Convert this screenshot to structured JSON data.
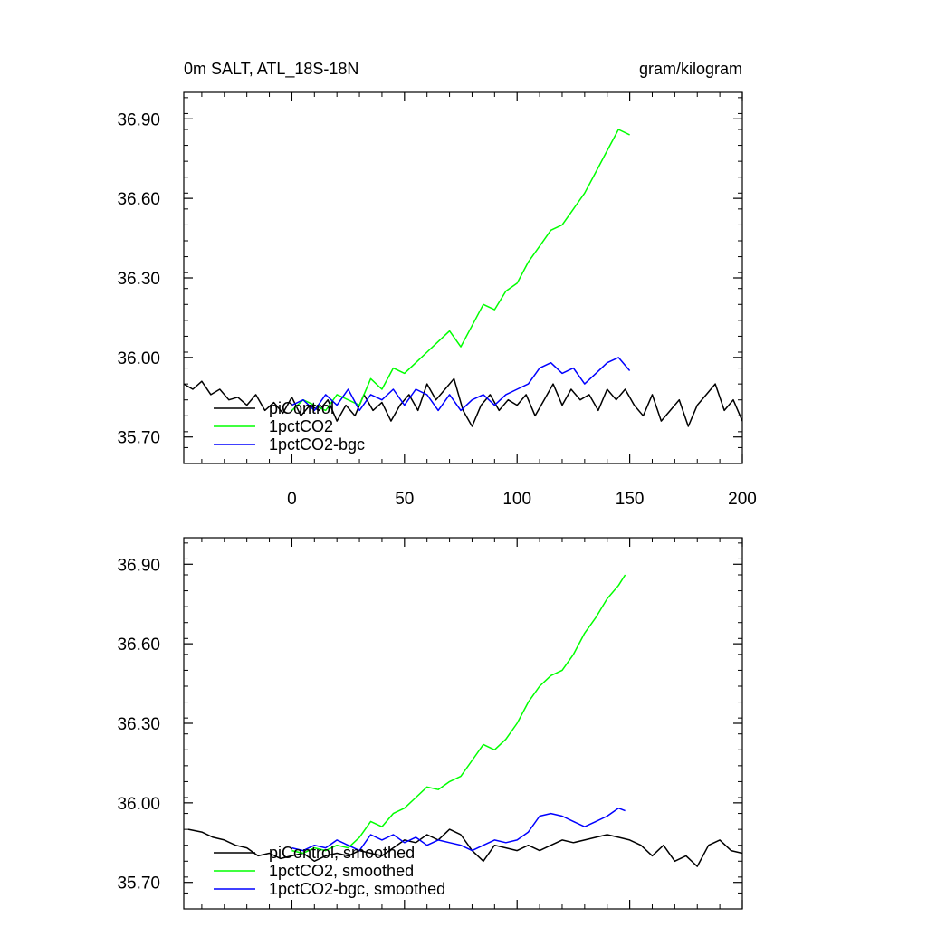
{
  "chart_data": [
    {
      "type": "line",
      "title_left": "0m SALT, ATL_18S-18N",
      "title_right": "gram/kilogram",
      "xlabel": "",
      "ylabel": "",
      "xlim": [
        -48,
        200
      ],
      "ylim": [
        35.6,
        37.0
      ],
      "xticks": [
        0,
        50,
        100,
        150,
        200
      ],
      "xtick_labels": [
        "0",
        "50",
        "100",
        "150",
        "200"
      ],
      "yticks": [
        35.7,
        36.0,
        36.3,
        36.6,
        36.9
      ],
      "ytick_labels": [
        "35.70",
        "36.00",
        "36.30",
        "36.60",
        "36.90"
      ],
      "legend_position": "bottom-left",
      "series": [
        {
          "name": "piControl",
          "color": "#000000",
          "x": [
            -48,
            -44,
            -40,
            -36,
            -32,
            -28,
            -24,
            -20,
            -16,
            -12,
            -8,
            -4,
            0,
            4,
            8,
            12,
            16,
            20,
            24,
            28,
            32,
            36,
            40,
            44,
            48,
            52,
            56,
            60,
            64,
            68,
            72,
            76,
            80,
            84,
            88,
            92,
            96,
            100,
            104,
            108,
            112,
            116,
            120,
            124,
            128,
            132,
            136,
            140,
            144,
            148,
            152,
            156,
            160,
            164,
            168,
            172,
            176,
            180,
            184,
            188,
            192,
            196,
            200
          ],
          "y": [
            35.9,
            35.88,
            35.91,
            35.86,
            35.88,
            35.84,
            35.85,
            35.82,
            35.86,
            35.8,
            35.83,
            35.79,
            35.85,
            35.78,
            35.82,
            35.8,
            35.84,
            35.76,
            35.82,
            35.78,
            35.86,
            35.8,
            35.83,
            35.76,
            35.82,
            35.86,
            35.8,
            35.9,
            35.84,
            35.88,
            35.92,
            35.8,
            35.74,
            35.82,
            35.86,
            35.8,
            35.84,
            35.82,
            35.86,
            35.78,
            35.84,
            35.9,
            35.82,
            35.88,
            35.84,
            35.86,
            35.8,
            35.88,
            35.84,
            35.88,
            35.82,
            35.78,
            35.86,
            35.76,
            35.8,
            35.84,
            35.74,
            35.82,
            35.86,
            35.9,
            35.8,
            35.84,
            35.76
          ]
        },
        {
          "name": "1pctCO2",
          "color": "#00ff00",
          "x": [
            0,
            5,
            10,
            15,
            20,
            25,
            30,
            35,
            40,
            45,
            50,
            55,
            60,
            65,
            70,
            75,
            80,
            85,
            90,
            95,
            100,
            105,
            110,
            115,
            120,
            125,
            130,
            135,
            140,
            145,
            150
          ],
          "y": [
            35.8,
            35.84,
            35.82,
            35.8,
            35.86,
            35.84,
            35.82,
            35.92,
            35.88,
            35.96,
            35.94,
            35.98,
            36.02,
            36.06,
            36.1,
            36.04,
            36.12,
            36.2,
            36.18,
            36.25,
            36.28,
            36.36,
            36.42,
            36.48,
            36.5,
            36.56,
            36.62,
            36.7,
            36.78,
            36.86,
            36.84
          ]
        },
        {
          "name": "1pctCO2-bgc",
          "color": "#0000ff",
          "x": [
            0,
            5,
            10,
            15,
            20,
            25,
            30,
            35,
            40,
            45,
            50,
            55,
            60,
            65,
            70,
            75,
            80,
            85,
            90,
            95,
            100,
            105,
            110,
            115,
            120,
            125,
            130,
            135,
            140,
            145,
            150
          ],
          "y": [
            35.82,
            35.84,
            35.8,
            35.86,
            35.82,
            35.88,
            35.8,
            35.86,
            35.84,
            35.88,
            35.82,
            35.88,
            35.86,
            35.8,
            35.86,
            35.8,
            35.84,
            35.86,
            35.82,
            35.86,
            35.88,
            35.9,
            35.96,
            35.98,
            35.94,
            35.96,
            35.9,
            35.94,
            35.98,
            36.0,
            35.95
          ]
        }
      ]
    },
    {
      "type": "line",
      "title_left": "",
      "title_right": "",
      "xlabel": "",
      "ylabel": "",
      "xlim": [
        -48,
        200
      ],
      "ylim": [
        35.6,
        37.0
      ],
      "xticks": [
        0,
        50,
        100,
        150,
        200
      ],
      "xtick_labels": [],
      "yticks": [
        35.7,
        36.0,
        36.3,
        36.6,
        36.9
      ],
      "ytick_labels": [
        "35.70",
        "36.00",
        "36.30",
        "36.60",
        "36.90"
      ],
      "legend_position": "bottom-left",
      "series": [
        {
          "name": "piControl, smoothed",
          "color": "#000000",
          "x": [
            -46,
            -40,
            -35,
            -30,
            -25,
            -20,
            -15,
            -10,
            -5,
            0,
            5,
            10,
            15,
            20,
            25,
            30,
            35,
            40,
            45,
            50,
            55,
            60,
            65,
            70,
            75,
            80,
            85,
            90,
            95,
            100,
            105,
            110,
            115,
            120,
            125,
            130,
            135,
            140,
            145,
            150,
            155,
            160,
            165,
            170,
            175,
            180,
            185,
            190,
            195,
            200
          ],
          "y": [
            35.9,
            35.89,
            35.87,
            35.86,
            35.84,
            35.83,
            35.8,
            35.81,
            35.79,
            35.8,
            35.81,
            35.78,
            35.8,
            35.81,
            35.8,
            35.82,
            35.81,
            35.8,
            35.83,
            35.86,
            35.85,
            35.88,
            35.86,
            35.9,
            35.88,
            35.82,
            35.78,
            35.84,
            35.83,
            35.82,
            35.84,
            35.82,
            35.84,
            35.86,
            35.85,
            35.86,
            35.87,
            35.88,
            35.87,
            35.86,
            35.84,
            35.8,
            35.84,
            35.78,
            35.8,
            35.76,
            35.84,
            35.86,
            35.82,
            35.81
          ]
        },
        {
          "name": "1pctCO2, smoothed",
          "color": "#00ff00",
          "x": [
            0,
            5,
            10,
            15,
            20,
            25,
            30,
            35,
            40,
            45,
            50,
            55,
            60,
            65,
            70,
            75,
            80,
            85,
            90,
            95,
            100,
            105,
            110,
            115,
            120,
            125,
            130,
            135,
            140,
            145,
            148
          ],
          "y": [
            35.82,
            35.81,
            35.83,
            35.82,
            35.84,
            35.83,
            35.87,
            35.93,
            35.91,
            35.96,
            35.98,
            36.02,
            36.06,
            36.05,
            36.08,
            36.1,
            36.16,
            36.22,
            36.2,
            36.24,
            36.3,
            36.38,
            36.44,
            36.48,
            36.5,
            36.56,
            36.64,
            36.7,
            36.77,
            36.82,
            36.86
          ]
        },
        {
          "name": "1pctCO2-bgc, smoothed",
          "color": "#0000ff",
          "x": [
            0,
            5,
            10,
            15,
            20,
            25,
            30,
            35,
            40,
            45,
            50,
            55,
            60,
            65,
            70,
            75,
            80,
            85,
            90,
            95,
            100,
            105,
            110,
            115,
            120,
            125,
            130,
            135,
            140,
            145,
            148
          ],
          "y": [
            35.83,
            35.82,
            35.84,
            35.83,
            35.86,
            35.84,
            35.82,
            35.88,
            35.86,
            35.88,
            35.85,
            35.87,
            35.84,
            35.86,
            35.85,
            35.84,
            35.82,
            35.84,
            35.86,
            35.85,
            35.86,
            35.89,
            35.95,
            35.96,
            35.95,
            35.93,
            35.91,
            35.93,
            35.95,
            35.98,
            35.97
          ]
        }
      ]
    }
  ]
}
